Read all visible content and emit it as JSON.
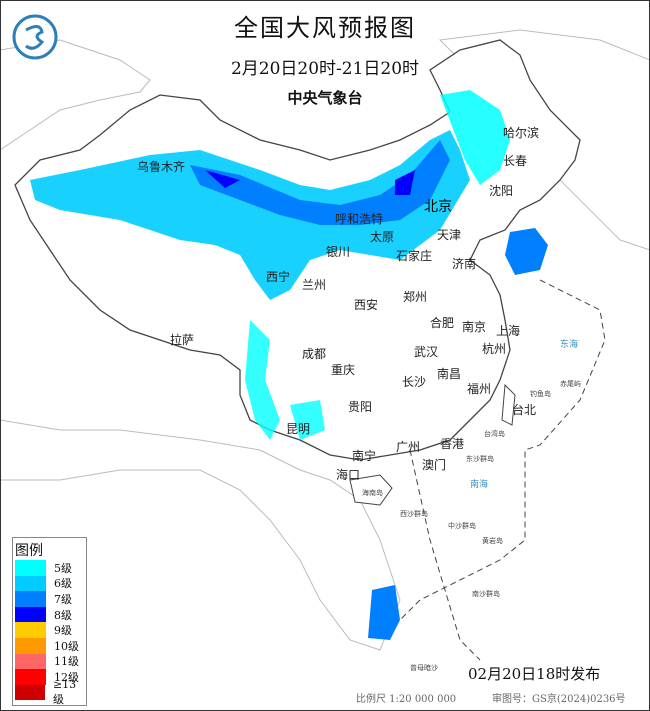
{
  "header": {
    "title": "全国大风预报图",
    "period": "2月20日20时-21日20时",
    "agency": "中央气象台"
  },
  "legend": {
    "title": "图例",
    "items": [
      {
        "label": "5级",
        "color": "#00ffff"
      },
      {
        "label": "6级",
        "color": "#00ccff"
      },
      {
        "label": "7级",
        "color": "#0080ff"
      },
      {
        "label": "8级",
        "color": "#0000ff"
      },
      {
        "label": "9级",
        "color": "#ffcc00"
      },
      {
        "label": "10级",
        "color": "#ff9900"
      },
      {
        "label": "11级",
        "color": "#ff6666"
      },
      {
        "label": "12级",
        "color": "#ff0000"
      },
      {
        "label": "≥13级",
        "color": "#cc0000"
      }
    ]
  },
  "cities": [
    "乌鲁木齐",
    "哈尔滨",
    "长春",
    "沈阳",
    "北京",
    "天津",
    "呼和浩特",
    "银川",
    "太原",
    "石家庄",
    "济南",
    "西宁",
    "兰州",
    "西安",
    "郑州",
    "合肥",
    "南京",
    "上海",
    "杭州",
    "拉萨",
    "成都",
    "武汉",
    "重庆",
    "南昌",
    "长沙",
    "福州",
    "台北",
    "贵阳",
    "昆明",
    "南宁",
    "广州",
    "香港",
    "澳门",
    "海口"
  ],
  "labels": {
    "east_sea": "东海",
    "south_sea": "南海",
    "diaoyu": "钓鱼岛",
    "chiwei": "赤尾屿",
    "dongsha": "东沙群岛",
    "xisha": "西沙群岛",
    "zhongsha": "中沙群岛",
    "huangyan": "黄岩岛",
    "nansha": "南沙群岛",
    "hainan": "海南岛",
    "taiwan": "台湾岛",
    "zengmu": "曾母暗沙"
  },
  "footer": {
    "issued": "02月20日18时发布",
    "scale": "比例尺 1:20 000 000",
    "approval": "审图号：GS京(2024)0236号"
  }
}
